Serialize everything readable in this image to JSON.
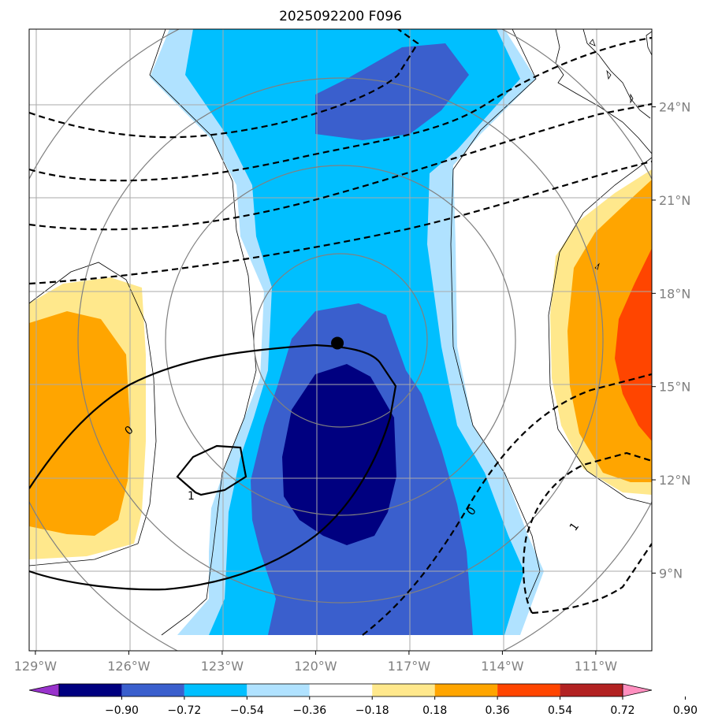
{
  "chart_data": {
    "type": "heatmap",
    "title": "2025092200 F096",
    "projection": "map",
    "x_axis": {
      "range_deg": [
        -129.2,
        -109.2
      ],
      "ticks": [
        {
          "value": -129,
          "label": "129°W"
        },
        {
          "value": -126,
          "label": "126°W"
        },
        {
          "value": -123,
          "label": "123°W"
        },
        {
          "value": -120,
          "label": "120°W"
        },
        {
          "value": -117,
          "label": "117°W"
        },
        {
          "value": -114,
          "label": "114°W"
        },
        {
          "value": -111,
          "label": "111°W"
        }
      ]
    },
    "y_axis": {
      "range_deg": [
        6.5,
        26.5
      ],
      "ticks": [
        {
          "value": 9,
          "label": "9°N"
        },
        {
          "value": 12,
          "label": "12°N"
        },
        {
          "value": 15,
          "label": "15°N"
        },
        {
          "value": 18,
          "label": "18°N"
        },
        {
          "value": 21,
          "label": "21°N"
        },
        {
          "value": 24,
          "label": "24°N"
        }
      ]
    },
    "grid": true,
    "colorbar": {
      "orientation": "horizontal",
      "extend": "both",
      "levels": [
        -0.9,
        -0.72,
        -0.54,
        -0.36,
        -0.18,
        0.18,
        0.36,
        0.54,
        0.72,
        0.9
      ],
      "tick_labels": [
        "−0.90",
        "−0.72",
        "−0.54",
        "−0.36",
        "−0.18",
        "0.18",
        "0.36",
        "0.54",
        "0.72",
        "0.90"
      ],
      "colors": [
        "#9933cc",
        "#000080",
        "#3a5fcd",
        "#00bfff",
        "#b0e2ff",
        "#ffffff",
        "#ffe88c",
        "#ffa500",
        "#ff4500",
        "#b22222",
        "#ff8fbf"
      ]
    },
    "storm_center": {
      "lon": -119.3,
      "lat": 16.4
    },
    "contour_labels": [
      {
        "text": "0",
        "lon": -126.0,
        "lat": 13.6,
        "rotate": -40
      },
      {
        "text": "1",
        "lon": -124.0,
        "lat": 11.5,
        "rotate": 0
      },
      {
        "text": "0",
        "lon": -115.0,
        "lat": 11.0,
        "rotate": -55
      },
      {
        "text": "1",
        "lon": -111.7,
        "lat": 10.5,
        "rotate": -55
      }
    ]
  }
}
